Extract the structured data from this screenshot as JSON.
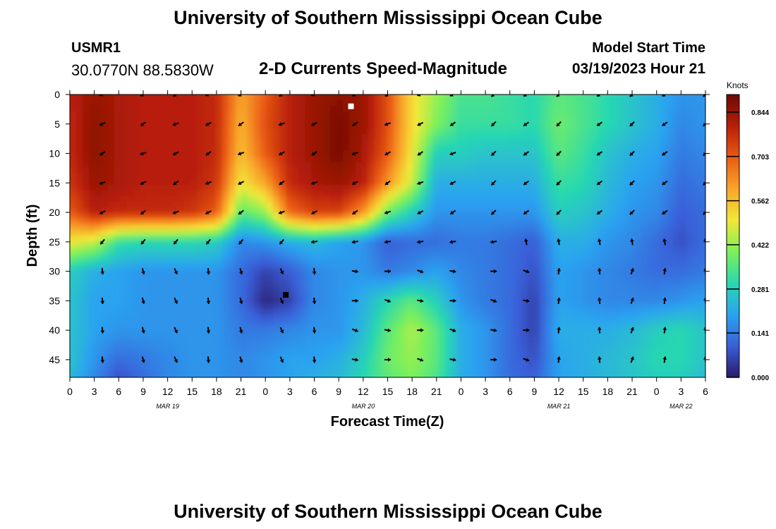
{
  "header": {
    "title": "University of Southern Mississippi Ocean Cube",
    "station_id": "USMR1",
    "station_coords": "30.0770N  88.5830W",
    "subtitle": "2-D Currents Speed-Magnitude",
    "model_start_label": "Model Start Time",
    "model_start_value": "03/19/2023 Hour 21"
  },
  "footer": {
    "title": "University of Southern Mississippi Ocean Cube"
  },
  "chart_data": {
    "type": "heatmap",
    "title": "2-D Currents Speed-Magnitude",
    "xlabel": "Forecast Time(Z)",
    "ylabel": "Depth (ft)",
    "x_ticks": [
      "0",
      "3",
      "6",
      "9",
      "12",
      "15",
      "18",
      "21",
      "0",
      "3",
      "6",
      "9",
      "12",
      "15",
      "18",
      "21",
      "0",
      "3",
      "6",
      "9",
      "12",
      "15",
      "18",
      "21",
      "0",
      "3",
      "6"
    ],
    "x_range_hours": [
      0,
      78
    ],
    "date_labels": [
      {
        "label": "MAR 19",
        "hour": 12
      },
      {
        "label": "MAR 20",
        "hour": 36
      },
      {
        "label": "MAR 21",
        "hour": 60
      },
      {
        "label": "MAR 22",
        "hour": 75
      }
    ],
    "y_ticks": [
      0,
      5,
      10,
      15,
      20,
      25,
      30,
      35,
      40,
      45
    ],
    "y_range_ft": [
      0,
      48
    ],
    "y_inverted": true,
    "colorbar": {
      "label": "Knots",
      "ticks": [
        0.0,
        0.141,
        0.281,
        0.422,
        0.562,
        0.703,
        0.844
      ],
      "tick_labels": [
        "0.000",
        "0.141",
        "0.281",
        "0.422",
        "0.562",
        "0.703",
        "0.844"
      ],
      "range": [
        0,
        0.9
      ],
      "colors": [
        "#2a1a6b",
        "#3a5fd8",
        "#2aa3f0",
        "#28d8b0",
        "#7ef05a",
        "#f2e838",
        "#f9a52a",
        "#ea5a14",
        "#b81e08",
        "#6c0a02"
      ]
    },
    "vector_time_hours": [
      4,
      9,
      13,
      17,
      21,
      26,
      30,
      35,
      39,
      43,
      47,
      52,
      56,
      60,
      65,
      69,
      73,
      78
    ],
    "vector_depth_ft": [
      0,
      5,
      10,
      15,
      20,
      25,
      30,
      35,
      40,
      45
    ],
    "speed_field_description": "columns=time hours, rows=depth ft",
    "speed_samples": {
      "time_hours": [
        0,
        3,
        6,
        9,
        12,
        15,
        18,
        21,
        24,
        27,
        30,
        33,
        36,
        39,
        42,
        45,
        48,
        51,
        54,
        57,
        60,
        63,
        66,
        69,
        72,
        75,
        78
      ],
      "depth_ft": [
        0,
        5,
        10,
        15,
        20,
        25,
        30,
        35,
        40,
        45,
        48
      ],
      "values": [
        [
          0.8,
          0.84,
          0.82,
          0.8,
          0.8,
          0.8,
          0.78,
          0.6,
          0.7,
          0.8,
          0.84,
          0.86,
          0.84,
          0.72,
          0.52,
          0.42,
          0.34,
          0.34,
          0.32,
          0.3,
          0.36,
          0.34,
          0.3,
          0.26,
          0.22,
          0.18,
          0.18
        ],
        [
          0.78,
          0.86,
          0.82,
          0.8,
          0.8,
          0.8,
          0.78,
          0.58,
          0.72,
          0.8,
          0.84,
          0.88,
          0.84,
          0.72,
          0.52,
          0.4,
          0.32,
          0.32,
          0.32,
          0.3,
          0.38,
          0.34,
          0.3,
          0.26,
          0.22,
          0.16,
          0.18
        ],
        [
          0.78,
          0.86,
          0.82,
          0.8,
          0.8,
          0.8,
          0.78,
          0.56,
          0.7,
          0.8,
          0.84,
          0.88,
          0.82,
          0.7,
          0.5,
          0.28,
          0.28,
          0.26,
          0.26,
          0.26,
          0.36,
          0.32,
          0.26,
          0.22,
          0.2,
          0.14,
          0.16
        ],
        [
          0.76,
          0.84,
          0.82,
          0.8,
          0.8,
          0.8,
          0.76,
          0.5,
          0.6,
          0.78,
          0.82,
          0.84,
          0.8,
          0.62,
          0.46,
          0.22,
          0.22,
          0.22,
          0.22,
          0.22,
          0.32,
          0.3,
          0.24,
          0.2,
          0.18,
          0.12,
          0.14
        ],
        [
          0.7,
          0.8,
          0.78,
          0.78,
          0.78,
          0.76,
          0.7,
          0.36,
          0.42,
          0.68,
          0.74,
          0.74,
          0.62,
          0.38,
          0.28,
          0.18,
          0.18,
          0.18,
          0.18,
          0.18,
          0.28,
          0.26,
          0.22,
          0.18,
          0.16,
          0.1,
          0.12
        ],
        [
          0.5,
          0.46,
          0.32,
          0.3,
          0.3,
          0.3,
          0.28,
          0.16,
          0.18,
          0.22,
          0.24,
          0.2,
          0.18,
          0.1,
          0.12,
          0.12,
          0.14,
          0.14,
          0.12,
          0.1,
          0.22,
          0.22,
          0.18,
          0.16,
          0.12,
          0.08,
          0.12
        ],
        [
          0.28,
          0.22,
          0.2,
          0.18,
          0.18,
          0.18,
          0.18,
          0.12,
          0.06,
          0.1,
          0.16,
          0.18,
          0.18,
          0.14,
          0.16,
          0.2,
          0.16,
          0.14,
          0.12,
          0.08,
          0.2,
          0.18,
          0.16,
          0.14,
          0.12,
          0.12,
          0.14
        ],
        [
          0.26,
          0.2,
          0.2,
          0.18,
          0.18,
          0.18,
          0.18,
          0.12,
          0.02,
          0.06,
          0.16,
          0.18,
          0.22,
          0.3,
          0.36,
          0.28,
          0.18,
          0.14,
          0.12,
          0.06,
          0.2,
          0.18,
          0.16,
          0.16,
          0.16,
          0.18,
          0.2
        ],
        [
          0.26,
          0.2,
          0.18,
          0.18,
          0.18,
          0.18,
          0.18,
          0.14,
          0.14,
          0.16,
          0.18,
          0.18,
          0.24,
          0.36,
          0.44,
          0.36,
          0.22,
          0.18,
          0.12,
          0.06,
          0.22,
          0.22,
          0.22,
          0.24,
          0.28,
          0.3,
          0.26
        ],
        [
          0.26,
          0.18,
          0.12,
          0.14,
          0.16,
          0.18,
          0.18,
          0.16,
          0.18,
          0.2,
          0.2,
          0.22,
          0.28,
          0.38,
          0.42,
          0.36,
          0.22,
          0.18,
          0.12,
          0.08,
          0.2,
          0.22,
          0.24,
          0.26,
          0.3,
          0.3,
          0.26
        ],
        [
          0.24,
          0.16,
          0.08,
          0.12,
          0.16,
          0.18,
          0.18,
          0.16,
          0.18,
          0.2,
          0.22,
          0.24,
          0.3,
          0.36,
          0.4,
          0.34,
          0.22,
          0.18,
          0.12,
          0.1,
          0.2,
          0.22,
          0.24,
          0.26,
          0.28,
          0.28,
          0.24
        ]
      ]
    }
  }
}
